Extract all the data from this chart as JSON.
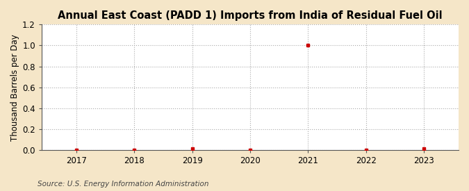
{
  "title": "Annual East Coast (PADD 1) Imports from India of Residual Fuel Oil",
  "ylabel": "Thousand Barrels per Day",
  "source": "Source: U.S. Energy Information Administration",
  "fig_background_color": "#f5e6c8",
  "plot_background_color": "#ffffff",
  "data_years": [
    2017,
    2018,
    2019,
    2020,
    2021,
    2022,
    2023
  ],
  "data_values": [
    0,
    0,
    0.01,
    0,
    1.0,
    0,
    0.01
  ],
  "point_color": "#cc0000",
  "xlim": [
    2016.4,
    2023.6
  ],
  "ylim": [
    0,
    1.2
  ],
  "yticks": [
    0.0,
    0.2,
    0.4,
    0.6,
    0.8,
    1.0,
    1.2
  ],
  "xticks": [
    2017,
    2018,
    2019,
    2020,
    2021,
    2022,
    2023
  ],
  "grid_color": "#aaaaaa",
  "title_fontsize": 10.5,
  "label_fontsize": 8.5,
  "tick_fontsize": 8.5,
  "source_fontsize": 7.5,
  "marker_size": 3
}
